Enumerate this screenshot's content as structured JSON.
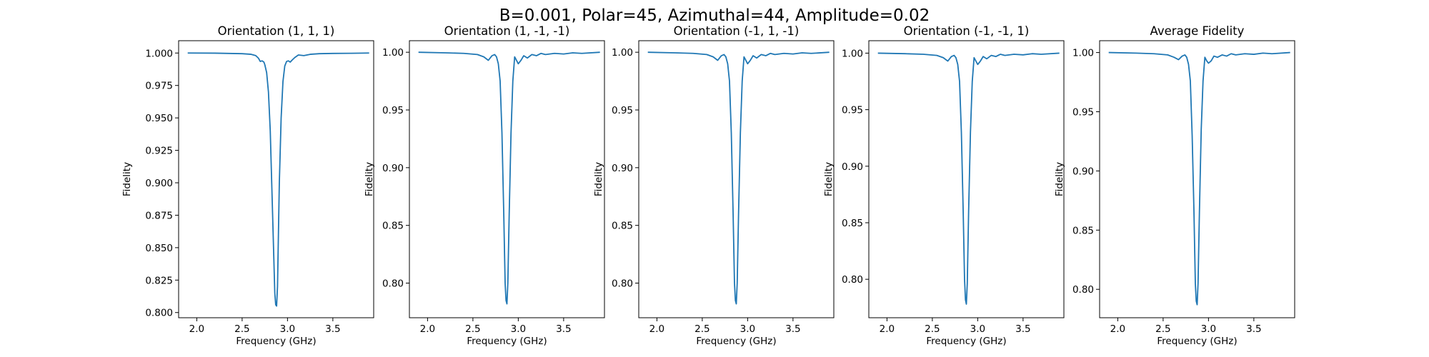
{
  "figure": {
    "suptitle": "B=0.001, Polar=45, Azimuthal=44, Amplitude=0.02",
    "line_color": "#1f77b4"
  },
  "chart_data": [
    {
      "type": "line",
      "title": "Orientation (1, 1, 1)",
      "xlabel": "Frequency (GHz)",
      "ylabel": "Fidelity",
      "xlim": [
        1.8,
        3.95
      ],
      "ylim": [
        0.796,
        1.0095
      ],
      "xticks": [
        "2.0",
        "2.5",
        "3.0",
        "3.5"
      ],
      "yticks": [
        "0.800",
        "0.825",
        "0.850",
        "0.875",
        "0.900",
        "0.925",
        "0.950",
        "0.975",
        "1.000"
      ],
      "grid": false,
      "series": [
        {
          "x": [
            1.9,
            2.2,
            2.5,
            2.6,
            2.65,
            2.68,
            2.7,
            2.72,
            2.74,
            2.75,
            2.77,
            2.79,
            2.81,
            2.83,
            2.85,
            2.86,
            2.87,
            2.88,
            2.89,
            2.9,
            2.91,
            2.93,
            2.95,
            2.97,
            2.99,
            3.01,
            3.03,
            3.05,
            3.08,
            3.12,
            3.18,
            3.25,
            3.35,
            3.5,
            3.7,
            3.9
          ],
          "y": [
            1.0,
            0.9999,
            0.9995,
            0.999,
            0.998,
            0.996,
            0.9935,
            0.994,
            0.993,
            0.991,
            0.985,
            0.97,
            0.94,
            0.89,
            0.84,
            0.815,
            0.806,
            0.805,
            0.82,
            0.86,
            0.9,
            0.95,
            0.978,
            0.99,
            0.9935,
            0.994,
            0.993,
            0.9945,
            0.9965,
            0.9985,
            0.998,
            0.999,
            0.9995,
            0.9997,
            0.9998,
            1.0
          ]
        }
      ]
    },
    {
      "type": "line",
      "title": "Orientation (1, -1, -1)",
      "xlabel": "Frequency (GHz)",
      "ylabel": "Fidelity",
      "xlim": [
        1.8,
        3.95
      ],
      "ylim": [
        0.77,
        1.01
      ],
      "xticks": [
        "2.0",
        "2.5",
        "3.0",
        "3.5"
      ],
      "yticks": [
        "0.80",
        "0.85",
        "0.90",
        "0.95",
        "1.00"
      ],
      "grid": false,
      "series": [
        {
          "x": [
            1.9,
            2.2,
            2.4,
            2.55,
            2.62,
            2.67,
            2.71,
            2.74,
            2.76,
            2.78,
            2.8,
            2.82,
            2.84,
            2.855,
            2.865,
            2.875,
            2.885,
            2.9,
            2.92,
            2.94,
            2.96,
            2.98,
            3.0,
            3.03,
            3.06,
            3.1,
            3.15,
            3.2,
            3.25,
            3.3,
            3.4,
            3.5,
            3.6,
            3.7,
            3.9
          ],
          "y": [
            1.0,
            0.9995,
            0.999,
            0.998,
            0.996,
            0.993,
            0.997,
            0.998,
            0.996,
            0.99,
            0.975,
            0.93,
            0.86,
            0.8,
            0.785,
            0.782,
            0.8,
            0.86,
            0.93,
            0.975,
            0.996,
            0.993,
            0.99,
            0.993,
            0.997,
            0.995,
            0.998,
            0.997,
            0.999,
            0.998,
            0.999,
            0.9985,
            0.9995,
            0.999,
            1.0
          ]
        }
      ]
    },
    {
      "type": "line",
      "title": "Orientation (-1, 1, -1)",
      "xlabel": "Frequency (GHz)",
      "ylabel": "Fidelity",
      "xlim": [
        1.8,
        3.95
      ],
      "ylim": [
        0.77,
        1.01
      ],
      "xticks": [
        "2.0",
        "2.5",
        "3.0",
        "3.5"
      ],
      "yticks": [
        "0.80",
        "0.85",
        "0.90",
        "0.95",
        "1.00"
      ],
      "grid": false,
      "series": [
        {
          "x": [
            1.9,
            2.2,
            2.4,
            2.55,
            2.62,
            2.67,
            2.71,
            2.74,
            2.76,
            2.78,
            2.8,
            2.82,
            2.84,
            2.855,
            2.865,
            2.875,
            2.885,
            2.9,
            2.92,
            2.94,
            2.96,
            2.98,
            3.0,
            3.03,
            3.06,
            3.1,
            3.15,
            3.2,
            3.25,
            3.3,
            3.4,
            3.5,
            3.6,
            3.7,
            3.9
          ],
          "y": [
            1.0,
            0.9995,
            0.999,
            0.998,
            0.996,
            0.993,
            0.997,
            0.998,
            0.996,
            0.99,
            0.975,
            0.93,
            0.86,
            0.8,
            0.785,
            0.782,
            0.8,
            0.86,
            0.93,
            0.975,
            0.996,
            0.993,
            0.99,
            0.993,
            0.997,
            0.995,
            0.998,
            0.997,
            0.999,
            0.998,
            0.999,
            0.9985,
            0.9995,
            0.999,
            1.0
          ]
        }
      ]
    },
    {
      "type": "line",
      "title": "Orientation (-1, -1, 1)",
      "xlabel": "Frequency (GHz)",
      "ylabel": "Fidelity",
      "xlim": [
        1.8,
        3.95
      ],
      "ylim": [
        0.766,
        1.011
      ],
      "xticks": [
        "2.0",
        "2.5",
        "3.0",
        "3.5"
      ],
      "yticks": [
        "0.80",
        "0.85",
        "0.90",
        "0.95",
        "1.00"
      ],
      "grid": false,
      "series": [
        {
          "x": [
            1.9,
            2.2,
            2.4,
            2.55,
            2.62,
            2.67,
            2.71,
            2.74,
            2.76,
            2.78,
            2.8,
            2.82,
            2.84,
            2.855,
            2.865,
            2.875,
            2.885,
            2.9,
            2.92,
            2.94,
            2.96,
            2.98,
            3.0,
            3.03,
            3.06,
            3.1,
            3.15,
            3.2,
            3.25,
            3.3,
            3.4,
            3.5,
            3.6,
            3.7,
            3.9
          ],
          "y": [
            1.0,
            0.9995,
            0.999,
            0.998,
            0.996,
            0.993,
            0.997,
            0.998,
            0.996,
            0.99,
            0.975,
            0.93,
            0.86,
            0.8,
            0.782,
            0.778,
            0.796,
            0.86,
            0.93,
            0.975,
            0.996,
            0.993,
            0.99,
            0.993,
            0.997,
            0.995,
            0.998,
            0.997,
            0.999,
            0.998,
            0.999,
            0.9985,
            0.9995,
            0.999,
            1.0
          ]
        }
      ]
    },
    {
      "type": "line",
      "title": "Average Fidelity",
      "xlabel": "Frequency (GHz)",
      "ylabel": "Fidelity",
      "xlim": [
        1.8,
        3.95
      ],
      "ylim": [
        0.776,
        1.01
      ],
      "xticks": [
        "2.0",
        "2.5",
        "3.0",
        "3.5"
      ],
      "yticks": [
        "0.80",
        "0.85",
        "0.90",
        "0.95",
        "1.00"
      ],
      "grid": false,
      "series": [
        {
          "x": [
            1.9,
            2.2,
            2.4,
            2.55,
            2.62,
            2.67,
            2.71,
            2.74,
            2.76,
            2.78,
            2.8,
            2.82,
            2.84,
            2.855,
            2.865,
            2.875,
            2.885,
            2.9,
            2.92,
            2.94,
            2.96,
            2.98,
            3.0,
            3.03,
            3.06,
            3.1,
            3.15,
            3.2,
            3.25,
            3.3,
            3.4,
            3.5,
            3.6,
            3.7,
            3.9
          ],
          "y": [
            1.0,
            0.9995,
            0.999,
            0.998,
            0.996,
            0.994,
            0.997,
            0.998,
            0.996,
            0.99,
            0.976,
            0.93,
            0.865,
            0.805,
            0.79,
            0.787,
            0.805,
            0.865,
            0.935,
            0.976,
            0.996,
            0.993,
            0.991,
            0.993,
            0.997,
            0.996,
            0.998,
            0.997,
            0.999,
            0.998,
            0.999,
            0.9985,
            0.9995,
            0.999,
            1.0
          ]
        }
      ]
    }
  ]
}
